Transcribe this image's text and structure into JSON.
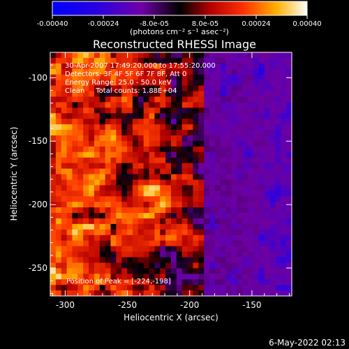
{
  "chart_data": {
    "type": "heatmap",
    "title": "Reconstructed RHESSI Image",
    "xlabel": "Heliocentric X (arcsec)",
    "ylabel": "Heliocentric Y (arcsec)",
    "xlim": [
      -312,
      -118
    ],
    "ylim": [
      -272,
      -80
    ],
    "x_ticks": [
      "-300",
      "-250",
      "-200",
      "-150"
    ],
    "y_ticks": [
      "-100",
      "-150",
      "-200",
      "-250"
    ],
    "x_tick_values": [
      -300,
      -250,
      -200,
      -150
    ],
    "y_tick_values": [
      -100,
      -150,
      -200,
      -250
    ],
    "colorbar": {
      "min": -0.0004,
      "max": 0.0004,
      "tick_labels": [
        "-0.00040",
        "-0.00024",
        "-8.0e-05",
        "8.0e-05",
        "0.00024",
        "0.00040"
      ],
      "tick_values": [
        -0.0004,
        -0.00024,
        -8e-05,
        8e-05,
        0.00024,
        0.0004
      ],
      "unit_label": "(photons cm⁻² s⁻¹ asec⁻²)"
    },
    "annotations": [
      "30-Apr-2007 17:49:20.000 to 17:55:20.000",
      "Detectors: 3F 4F 5F 6F 7F 8F, Att 0",
      "Energy Range: 25.0 - 50.0 keV",
      "Clean     Total counts: 1.88E+04"
    ],
    "peak_label": "Position of Peak = [-224,-198]",
    "peak": {
      "x": -224,
      "y": -198
    }
  },
  "footer": {
    "date": "6-May-2022 02:13"
  },
  "colors": {
    "background": "#000000",
    "text": "#ffffff"
  }
}
